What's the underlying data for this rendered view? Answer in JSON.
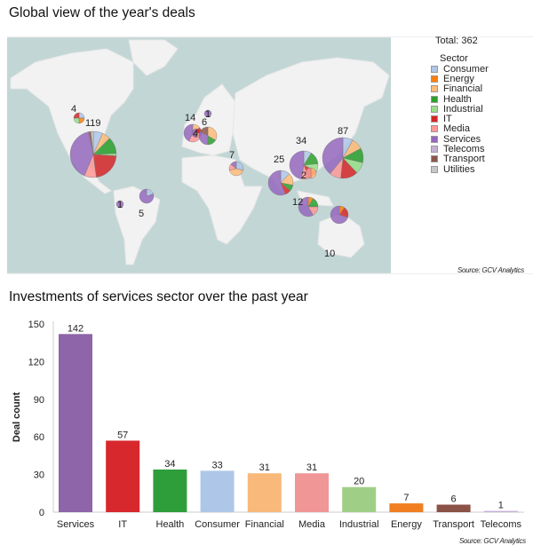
{
  "titles": {
    "map": "Global view of the year's deals",
    "bar": "Investments of services sector over the past year"
  },
  "source": "Source: GCV Analytics",
  "legend": {
    "total": "Total: 362",
    "header": "Sector",
    "items": [
      {
        "label": "Consumer",
        "color": "#aec7e8"
      },
      {
        "label": "Energy",
        "color": "#ff7f0e"
      },
      {
        "label": "Financial",
        "color": "#ffbb78"
      },
      {
        "label": "Health",
        "color": "#2ca02c"
      },
      {
        "label": "Industrial",
        "color": "#98df8a"
      },
      {
        "label": "IT",
        "color": "#d62728"
      },
      {
        "label": "Media",
        "color": "#ff9896"
      },
      {
        "label": "Services",
        "color": "#9467bd"
      },
      {
        "label": "Telecoms",
        "color": "#c5b0d5"
      },
      {
        "label": "Transport",
        "color": "#8c564b"
      },
      {
        "label": "Utilities",
        "color": "#c7c7c7"
      }
    ]
  },
  "chart_data": [
    {
      "type": "pie-map",
      "title": "Global view of the year's deals",
      "pies": [
        {
          "region": "North America",
          "label": "119",
          "total": 119,
          "slices": {
            "Services": 48,
            "Consumer": 8,
            "Financial": 7,
            "Health": 14,
            "Industrial": 2,
            "IT": 26,
            "Media": 10,
            "Transport": 2,
            "Utilities": 2
          }
        },
        {
          "region": "Canada",
          "label": "4",
          "total": 4,
          "slices": {
            "Consumer": 1,
            "Energy": 1,
            "Industrial": 1,
            "IT": 1
          }
        },
        {
          "region": "Colombia",
          "label": "1",
          "total": 1,
          "slices": {
            "Services": 1
          }
        },
        {
          "region": "Brazil",
          "label": "5",
          "total": 5,
          "slices": {
            "Services": 4,
            "Consumer": 1
          }
        },
        {
          "region": "UK",
          "label": "14",
          "total": 14,
          "slices": {
            "Services": 6,
            "Media": 4,
            "IT": 2,
            "Financial": 2
          }
        },
        {
          "region": "France",
          "label": "4",
          "total": 4,
          "slices": {
            "Services": 2,
            "IT": 1,
            "Media": 1
          }
        },
        {
          "region": "Germany",
          "label": "6",
          "total": 6,
          "slices": {
            "Financial": 2,
            "Services": 2,
            "Transport": 1,
            "Health": 1
          }
        },
        {
          "region": "Scandinavia",
          "label": "1",
          "total": 1,
          "slices": {
            "Services": 1
          }
        },
        {
          "region": "Middle East",
          "label": "7",
          "total": 7,
          "slices": {
            "Financial": 3,
            "Consumer": 2,
            "Services": 1,
            "Media": 1
          }
        },
        {
          "region": "India",
          "label": "25",
          "total": 25,
          "slices": {
            "Services": 14,
            "Consumer": 3,
            "Financial": 4,
            "Health": 2,
            "IT": 2
          }
        },
        {
          "region": "China",
          "label": "34",
          "total": 34,
          "slices": {
            "Services": 16,
            "Consumer": 3,
            "Health": 5,
            "Industrial": 3,
            "IT": 4,
            "Media": 3
          }
        },
        {
          "region": "Southeast Asia",
          "label": "2",
          "total": 2,
          "slices": {
            "Financial": 1,
            "Media": 1
          }
        },
        {
          "region": "East Asia",
          "label": "87",
          "total": 87,
          "slices": {
            "Services": 34,
            "Consumer": 7,
            "Financial": 8,
            "Health": 10,
            "Industrial": 8,
            "IT": 12,
            "Media": 8
          }
        },
        {
          "region": "Indonesia",
          "label": "12",
          "total": 12,
          "slices": {
            "Services": 7,
            "Energy": 1,
            "Health": 2,
            "Media": 2
          }
        },
        {
          "region": "Australia",
          "label": "10",
          "total": 10,
          "slices": {
            "Services": 7,
            "Energy": 1,
            "IT": 2
          }
        }
      ]
    },
    {
      "type": "bar",
      "title": "Investments of services sector over the past year",
      "xlabel": "",
      "ylabel": "Deal count",
      "ylim": [
        0,
        150
      ],
      "yticks": [
        0,
        30,
        60,
        90,
        120,
        150
      ],
      "categories": [
        "Services",
        "IT",
        "Health",
        "Consumer",
        "Financial",
        "Media",
        "Industrial",
        "Energy",
        "Transport",
        "Telecoms"
      ],
      "values": [
        142,
        57,
        34,
        33,
        31,
        31,
        20,
        7,
        6,
        1
      ],
      "colors": [
        "#8e65a8",
        "#d7282d",
        "#2e9e3b",
        "#aec7e8",
        "#f8b97a",
        "#f09696",
        "#9fcf87",
        "#f07f22",
        "#8b5247",
        "#c5b0d5"
      ]
    }
  ]
}
